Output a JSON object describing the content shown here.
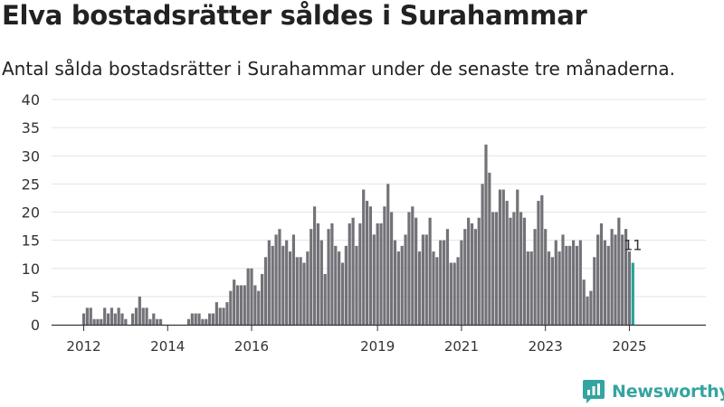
{
  "colors": {
    "bar": "#737278",
    "highlight": "#2aa198",
    "grid": "#e3e3e3",
    "axis": "#333333",
    "brand": "#35a4a0"
  },
  "brand": {
    "name": "Newsworthy",
    "icon": "newsworthy-logo-icon"
  },
  "chart_data": {
    "type": "bar",
    "title": "Elva bostadsrätter såldes i Surahammar",
    "subtitle": "Antal sålda bostadsrätter i Surahammar under de senaste tre månaderna.",
    "xlabel": "",
    "ylabel": "",
    "ylim": [
      0,
      40
    ],
    "yticks": [
      0,
      5,
      10,
      15,
      20,
      25,
      30,
      35,
      40
    ],
    "grid": true,
    "x_start": "2012-01",
    "xticks": [
      {
        "label": "2012",
        "month": "2012-01"
      },
      {
        "label": "2014",
        "month": "2014-01"
      },
      {
        "label": "2016",
        "month": "2016-01"
      },
      {
        "label": "2019",
        "month": "2019-01"
      },
      {
        "label": "2021",
        "month": "2021-01"
      },
      {
        "label": "2023",
        "month": "2023-01"
      },
      {
        "label": "2025",
        "month": "2025-01"
      }
    ],
    "highlight_last": true,
    "last_label": "11",
    "values": [
      2,
      3,
      3,
      1,
      1,
      1,
      3,
      2,
      3,
      2,
      3,
      2,
      1,
      0,
      2,
      3,
      5,
      3,
      3,
      1,
      2,
      1,
      1,
      0,
      0,
      0,
      0,
      0,
      0,
      0,
      1,
      2,
      2,
      2,
      1,
      1,
      2,
      2,
      4,
      3,
      3,
      4,
      6,
      8,
      7,
      7,
      7,
      10,
      10,
      7,
      6,
      9,
      12,
      15,
      14,
      16,
      17,
      14,
      15,
      13,
      16,
      12,
      12,
      11,
      13,
      17,
      21,
      18,
      15,
      9,
      17,
      18,
      14,
      13,
      11,
      14,
      18,
      19,
      14,
      18,
      24,
      22,
      21,
      16,
      18,
      18,
      21,
      25,
      20,
      15,
      13,
      14,
      16,
      20,
      21,
      19,
      13,
      16,
      16,
      19,
      13,
      12,
      15,
      15,
      17,
      11,
      11,
      12,
      15,
      17,
      19,
      18,
      17,
      19,
      25,
      32,
      27,
      20,
      20,
      24,
      24,
      22,
      19,
      20,
      24,
      20,
      19,
      13,
      13,
      17,
      22,
      23,
      17,
      13,
      12,
      15,
      13,
      16,
      14,
      14,
      15,
      14,
      15,
      8,
      5,
      6,
      12,
      16,
      18,
      15,
      14,
      17,
      16,
      19,
      16,
      17,
      13,
      11
    ]
  }
}
